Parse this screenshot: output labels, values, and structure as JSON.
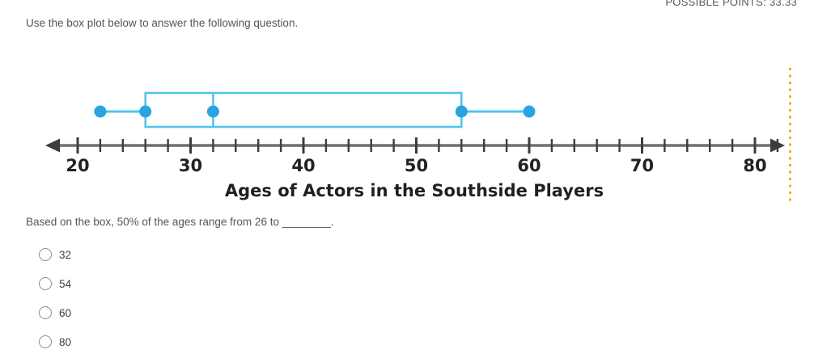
{
  "header": {
    "possible_points": "POSSIBLE POINTS: 33.33"
  },
  "instruction": "Use the box plot below to answer the following question.",
  "chart_data": {
    "type": "boxplot",
    "title": "Ages of Actors in the Southside Players",
    "five_number_summary": {
      "min": 22,
      "q1": 26,
      "median": 32,
      "q3": 54,
      "max": 60
    },
    "axis": {
      "orientation": "horizontal",
      "min": 20,
      "max": 82,
      "tick_step": 2,
      "labels": [
        20,
        30,
        40,
        50,
        60,
        70,
        80
      ],
      "arrows": "both"
    }
  },
  "question": "Based on the box, 50% of the ages range from 26 to ________.",
  "options": [
    "32",
    "54",
    "60",
    "80"
  ],
  "colors": {
    "box_stroke": "#4fc2ef",
    "dot_fill": "#29a4e0",
    "axis_line": "#6d6e71",
    "tick": "#3d3d3f",
    "label_text": "#232122",
    "dotted_line": "#eeb222",
    "body_text": "#55565a"
  }
}
